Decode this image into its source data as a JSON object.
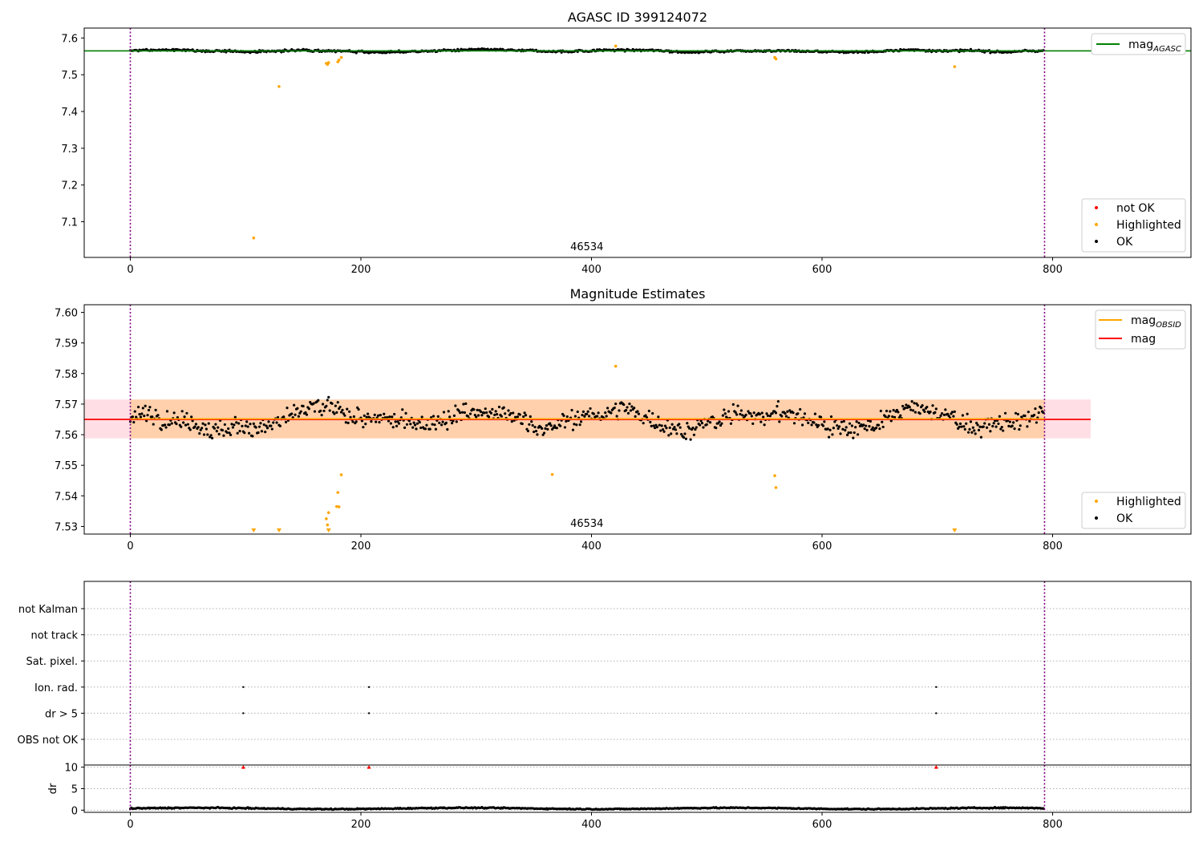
{
  "chart_data": [
    {
      "type": "scatter",
      "title": "AGASC ID 399124072",
      "xlim": [
        -40,
        920
      ],
      "ylim": [
        7.003,
        7.627
      ],
      "xticks": [
        "0",
        "200",
        "400",
        "600",
        "800"
      ],
      "yticks": [
        "7.1",
        "7.2",
        "7.3",
        "7.4",
        "7.5",
        "7.6"
      ],
      "vlines": [
        0,
        793
      ],
      "obsid_label": "46534",
      "hline": {
        "name": "mag_AGASC",
        "value": 7.565,
        "color": "#008000"
      },
      "legend_top": [
        "mag",
        "AGASC"
      ],
      "legend_bottom": [
        "not OK",
        "Highlighted",
        "OK"
      ],
      "series": [
        {
          "name": "OK",
          "color": "#000000",
          "base": 7.565,
          "amp": 0.006,
          "n": 793,
          "xmax": 793
        },
        {
          "name": "Highlighted",
          "color": "#ffa500",
          "points": [
            [
              107,
              7.056
            ],
            [
              129,
              7.468
            ],
            [
              170,
              7.531
            ],
            [
              171,
              7.528
            ],
            [
              172,
              7.533
            ],
            [
              180,
              7.535
            ],
            [
              181,
              7.54
            ],
            [
              183,
              7.547
            ],
            [
              421,
              7.578
            ],
            [
              559,
              7.547
            ],
            [
              560,
              7.543
            ],
            [
              715,
              7.522
            ]
          ]
        },
        {
          "name": "not OK",
          "color": "#ff0000",
          "points": []
        }
      ]
    },
    {
      "type": "scatter",
      "title": "Magnitude Estimates",
      "xlim": [
        -40,
        920
      ],
      "ylim": [
        7.5275,
        7.6025
      ],
      "xticks": [
        "0",
        "200",
        "400",
        "600",
        "800"
      ],
      "yticks": [
        "7.53",
        "7.54",
        "7.55",
        "7.56",
        "7.57",
        "7.58",
        "7.59",
        "7.60"
      ],
      "vlines": [
        0,
        793
      ],
      "obsid_label": "46534",
      "mag": 7.565,
      "mag_obsid": 7.5652,
      "band": [
        7.5588,
        7.5715
      ],
      "band_xmax": 833,
      "legend_top": [
        "mag",
        "OBSID",
        "mag"
      ],
      "legend_bottom": [
        "Highlighted",
        "OK"
      ],
      "series": [
        {
          "name": "OK",
          "color": "#000000",
          "base": 7.565,
          "amp": 0.0065,
          "n": 793,
          "xmax": 793
        },
        {
          "name": "Highlighted",
          "color": "#ffa500",
          "points": [
            [
              170,
              7.5325
            ],
            [
              171,
              7.5305
            ],
            [
              172,
              7.5345
            ],
            [
              179,
              7.5365
            ],
            [
              180,
              7.5411
            ],
            [
              181,
              7.5364
            ],
            [
              183,
              7.5469
            ],
            [
              366,
              7.547
            ],
            [
              421,
              7.5824
            ],
            [
              559,
              7.5466
            ],
            [
              560,
              7.5427
            ]
          ],
          "below_range_x": [
            107,
            129,
            172,
            715
          ]
        }
      ]
    },
    {
      "type": "scatter",
      "title": "",
      "xlim": [
        -40,
        920
      ],
      "xticks": [
        "0",
        "200",
        "400",
        "600",
        "800"
      ],
      "vlines": [
        0,
        793
      ],
      "flag_rows": [
        "not Kalman",
        "not track",
        "Sat. pixel.",
        "Ion. rad.",
        "dr > 5",
        "OBS not OK"
      ],
      "flag_points": {
        "Ion. rad.": [
          98,
          207,
          699
        ],
        "dr > 5": [
          98,
          207,
          699
        ]
      },
      "dr": {
        "ylabel": "dr",
        "ylim": [
          -0.5,
          10.5
        ],
        "yticks": [
          "0",
          "5",
          "10"
        ],
        "base": 0.4,
        "amp": 0.35,
        "n": 793,
        "outliers": [
          [
            98,
            10
          ],
          [
            207,
            10
          ],
          [
            699,
            10
          ]
        ],
        "outlier_color": "#ff0000"
      }
    }
  ]
}
